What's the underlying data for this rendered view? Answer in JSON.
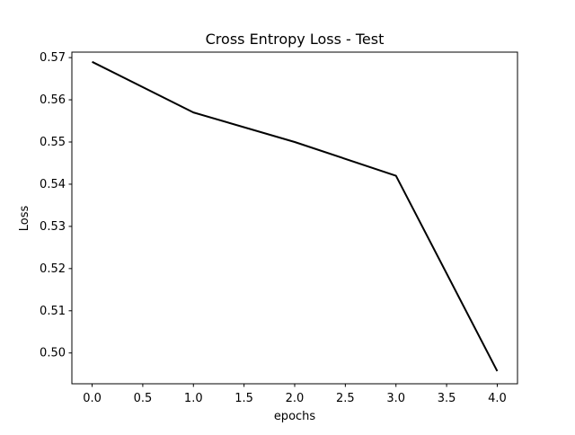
{
  "chart_data": {
    "type": "line",
    "title": "Cross Entropy Loss - Test",
    "xlabel": "epochs",
    "ylabel": "Loss",
    "x": [
      0,
      1,
      2,
      3,
      4
    ],
    "series": [
      {
        "values": [
          0.569,
          0.557,
          0.55,
          0.542,
          0.4957
        ],
        "color": "#000000"
      }
    ],
    "xlim": [
      -0.2,
      4.2
    ],
    "ylim": [
      0.4927,
      0.5713
    ],
    "xticks": [
      0.0,
      0.5,
      1.0,
      1.5,
      2.0,
      2.5,
      3.0,
      3.5,
      4.0
    ],
    "xtick_labels": [
      "0.0",
      "0.5",
      "1.0",
      "1.5",
      "2.0",
      "2.5",
      "3.0",
      "3.5",
      "4.0"
    ],
    "yticks": [
      0.5,
      0.51,
      0.52,
      0.53,
      0.54,
      0.55,
      0.56,
      0.57
    ],
    "ytick_labels": [
      "0.50",
      "0.51",
      "0.52",
      "0.53",
      "0.54",
      "0.55",
      "0.56",
      "0.57"
    ],
    "grid": false,
    "legend": false
  }
}
